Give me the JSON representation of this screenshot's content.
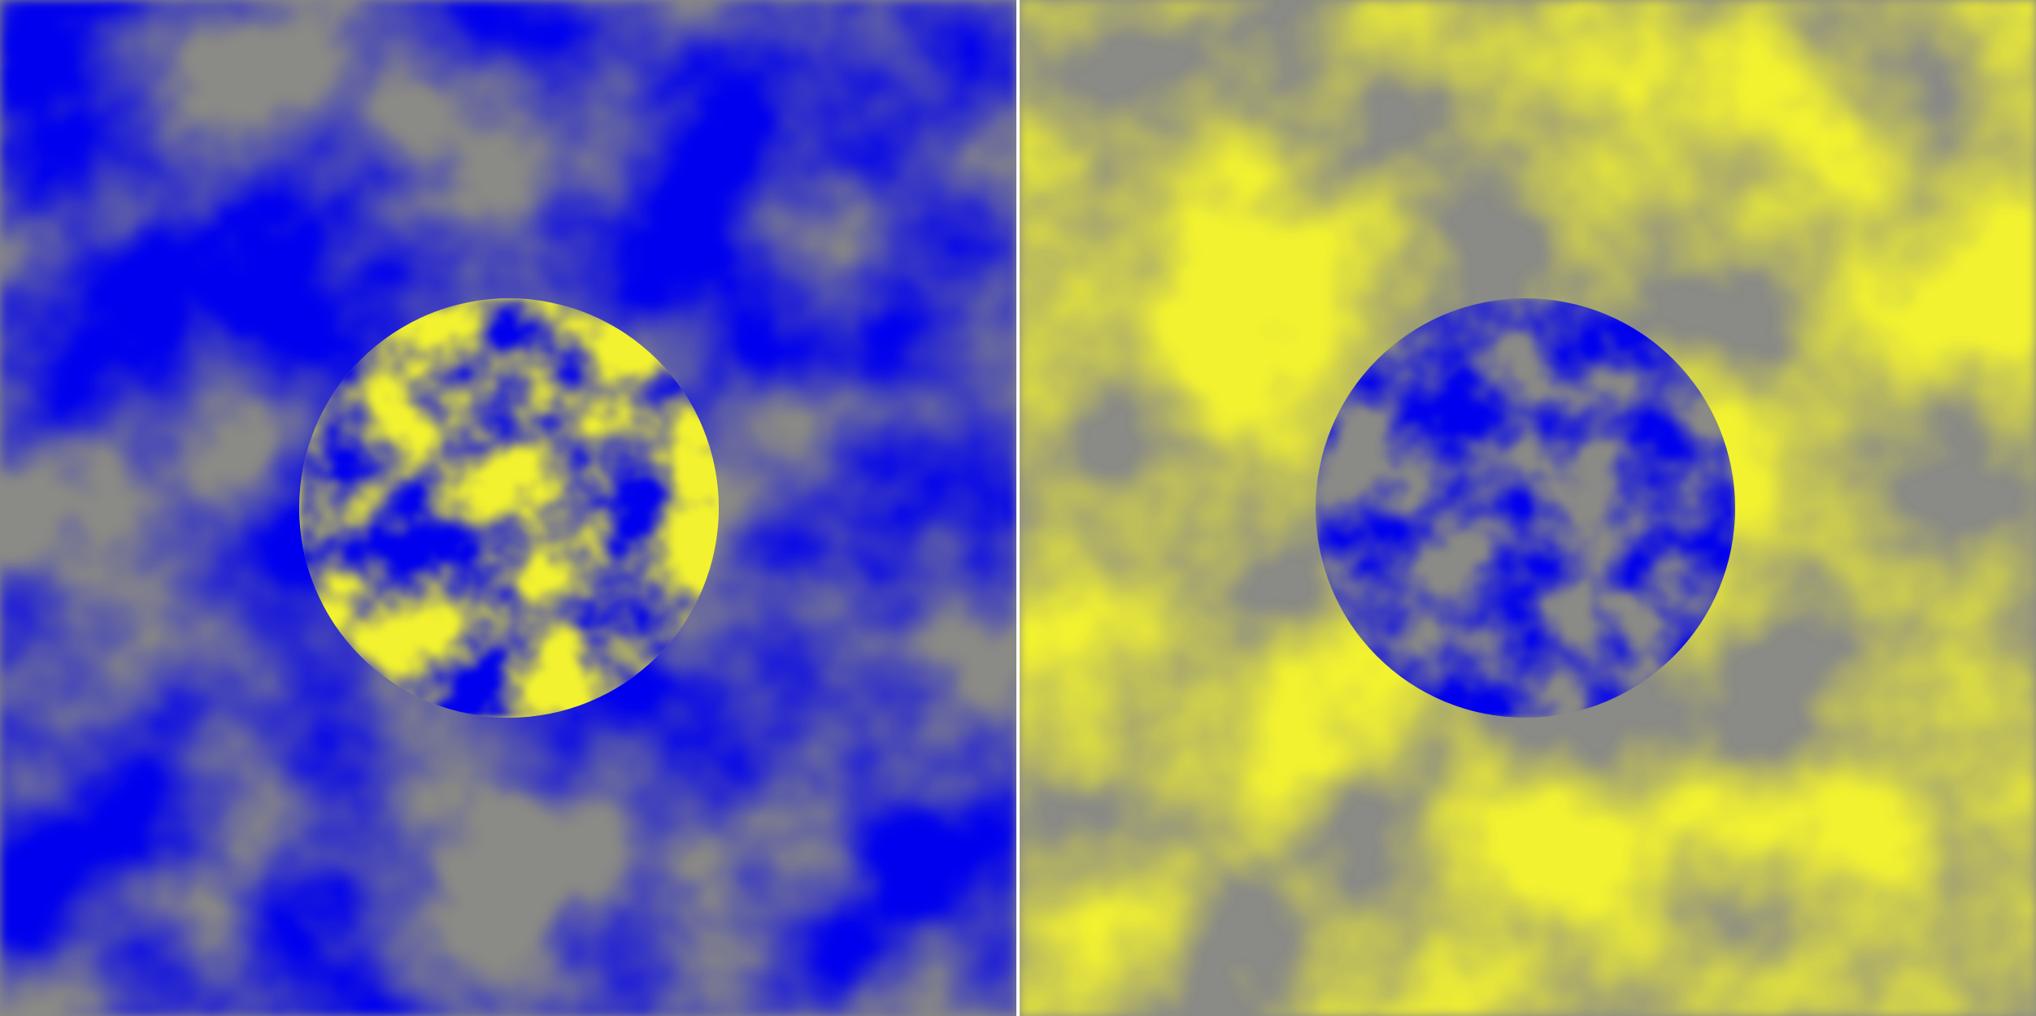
{
  "panels": [
    {
      "name": "left-panel",
      "background_tone": "blue",
      "disc_tone": "yellow"
    },
    {
      "name": "right-panel",
      "background_tone": "yellow",
      "disc_tone": "blue"
    }
  ],
  "colors": {
    "blue": "#0000ee",
    "yellow": "#f2f230",
    "gray": "#8a8a86",
    "divider": "#ffffff"
  }
}
